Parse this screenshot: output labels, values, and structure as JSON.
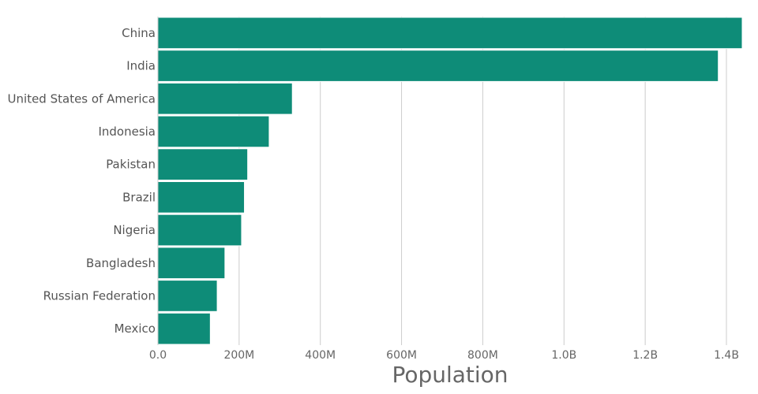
{
  "chart_data": {
    "type": "bar",
    "orientation": "horizontal",
    "categories": [
      "China",
      "India",
      "United States of America",
      "Indonesia",
      "Pakistan",
      "Brazil",
      "Nigeria",
      "Bangladesh",
      "Russian Federation",
      "Mexico"
    ],
    "values": [
      1440000000,
      1380000000,
      331000000,
      274000000,
      221000000,
      213000000,
      206000000,
      165000000,
      146000000,
      129000000
    ],
    "xlabel": "Population",
    "ylabel": "",
    "xlim": [
      0,
      1400000000
    ],
    "xticks": [
      0,
      200000000,
      400000000,
      600000000,
      800000000,
      1000000000,
      1200000000,
      1400000000
    ],
    "xtick_labels": [
      "0.0",
      "200M",
      "400M",
      "600M",
      "800M",
      "1.0B",
      "1.2B",
      "1.4B"
    ],
    "grid": "vertical",
    "bar_color": "#0e8c78"
  }
}
